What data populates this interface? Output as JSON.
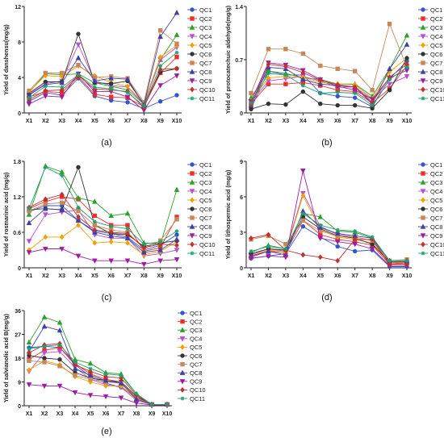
{
  "colors": [
    "#3355cc",
    "#e8312d",
    "#2ca02c",
    "#b84fd1",
    "#f0a000",
    "#333333",
    "#c8875a",
    "#4040a0",
    "#9b1fa0",
    "#c0302f",
    "#20a070"
  ],
  "markers": [
    "circle",
    "square",
    "triangle",
    "tri-down",
    "diamond",
    "circle",
    "square",
    "triangle",
    "tri-down",
    "diamond",
    "star"
  ],
  "chart_data": [
    {
      "type": "line",
      "panel": "(a)",
      "ylabel": "Yield of danshensu(mg/g)",
      "x": [
        "X1",
        "X2",
        "X3",
        "X4",
        "X5",
        "X6",
        "X7",
        "X8",
        "X9",
        "X10"
      ],
      "ylim": [
        0,
        12
      ],
      "yticks": [
        0,
        4,
        8,
        12
      ],
      "series": [
        {
          "name": "QC1",
          "values": [
            1.3,
            2.3,
            2.0,
            3.9,
            1.9,
            1.4,
            1.2,
            0.5,
            1.3,
            2.0
          ]
        },
        {
          "name": "QC2",
          "values": [
            1.8,
            2.4,
            2.3,
            4.1,
            2.1,
            1.8,
            1.7,
            0.7,
            4.5,
            6.3
          ]
        },
        {
          "name": "QC3",
          "values": [
            2.3,
            4.4,
            4.3,
            4.4,
            3.4,
            3.0,
            2.6,
            1.0,
            6.0,
            8.8
          ]
        },
        {
          "name": "QC4",
          "values": [
            2.1,
            3.3,
            3.6,
            7.7,
            3.6,
            3.1,
            2.9,
            1.0,
            6.0,
            7.4
          ]
        },
        {
          "name": "QC5",
          "values": [
            2.4,
            4.2,
            4.1,
            5.3,
            4.2,
            3.4,
            3.0,
            1.1,
            6.3,
            7.6
          ]
        },
        {
          "name": "QC6",
          "values": [
            2.2,
            3.5,
            3.5,
            8.9,
            3.4,
            3.3,
            3.6,
            1.0,
            4.6,
            5.0
          ]
        },
        {
          "name": "QC7",
          "values": [
            2.5,
            4.5,
            4.5,
            5.4,
            4.0,
            4.1,
            3.9,
            1.2,
            9.3,
            7.8
          ]
        },
        {
          "name": "QC8",
          "values": [
            2.0,
            3.2,
            3.4,
            6.2,
            3.6,
            3.9,
            3.8,
            0.9,
            8.6,
            11.3
          ]
        },
        {
          "name": "QC9",
          "values": [
            1.0,
            1.9,
            1.8,
            4.4,
            2.4,
            2.4,
            1.8,
            0.3,
            3.1,
            4.2
          ]
        },
        {
          "name": "QC10",
          "values": [
            1.5,
            2.5,
            2.6,
            4.2,
            2.7,
            2.6,
            2.4,
            0.6,
            4.9,
            5.0
          ]
        },
        {
          "name": "QC11",
          "values": [
            1.7,
            3.0,
            2.9,
            4.3,
            2.9,
            2.7,
            2.3,
            0.8,
            5.3,
            6.8
          ]
        }
      ]
    },
    {
      "type": "line",
      "panel": "(b)",
      "ylabel": "Yield of protocatechuic aldehyde(mg/g)",
      "x": [
        "X1",
        "X2",
        "X3",
        "X4",
        "X5",
        "X6",
        "X7",
        "X8",
        "X9",
        "X10"
      ],
      "ylim": [
        0,
        1.4
      ],
      "yticks": [
        0,
        0.7,
        1.4
      ],
      "series": [
        {
          "name": "QC1",
          "values": [
            0.06,
            0.55,
            0.5,
            0.5,
            0.26,
            0.22,
            0.2,
            0.08,
            0.45,
            0.68
          ]
        },
        {
          "name": "QC2",
          "values": [
            0.12,
            0.38,
            0.38,
            0.4,
            0.36,
            0.3,
            0.28,
            0.13,
            0.32,
            0.62
          ]
        },
        {
          "name": "QC3",
          "values": [
            0.2,
            0.55,
            0.52,
            0.46,
            0.44,
            0.38,
            0.38,
            0.22,
            0.58,
            1.02
          ]
        },
        {
          "name": "QC4",
          "values": [
            0.14,
            0.42,
            0.45,
            0.48,
            0.42,
            0.34,
            0.34,
            0.18,
            0.38,
            0.48
          ]
        },
        {
          "name": "QC5",
          "values": [
            0.16,
            0.46,
            0.48,
            0.47,
            0.4,
            0.38,
            0.37,
            0.19,
            0.54,
            0.72
          ]
        },
        {
          "name": "QC6",
          "values": [
            0.05,
            0.12,
            0.11,
            0.28,
            0.12,
            0.1,
            0.1,
            0.06,
            0.3,
            0.72
          ]
        },
        {
          "name": "QC7",
          "values": [
            0.26,
            0.84,
            0.84,
            0.78,
            0.62,
            0.58,
            0.55,
            0.3,
            1.17,
            0.6
          ]
        },
        {
          "name": "QC8",
          "values": [
            0.1,
            0.6,
            0.58,
            0.44,
            0.38,
            0.36,
            0.34,
            0.12,
            0.58,
            0.9
          ]
        },
        {
          "name": "QC9",
          "values": [
            0.15,
            0.66,
            0.63,
            0.56,
            0.44,
            0.35,
            0.3,
            0.18,
            0.46,
            0.56
          ]
        },
        {
          "name": "QC10",
          "values": [
            0.11,
            0.64,
            0.61,
            0.53,
            0.43,
            0.37,
            0.34,
            0.14,
            0.47,
            0.64
          ]
        },
        {
          "name": "QC11",
          "values": [
            0.13,
            0.52,
            0.5,
            0.36,
            0.26,
            0.27,
            0.26,
            0.1,
            0.44,
            0.6
          ]
        }
      ]
    },
    {
      "type": "line",
      "panel": "(c)",
      "ylabel": "Yield of rosmarinic acid (mg/g)",
      "x": [
        "X1",
        "X2",
        "X3",
        "X4",
        "X5",
        "X6",
        "X7",
        "X8",
        "X9",
        "X10"
      ],
      "ylim": [
        0,
        1.8
      ],
      "yticks": [
        0,
        0.6,
        1.2,
        1.8
      ],
      "series": [
        {
          "name": "QC1",
          "values": [
            0.95,
            1.05,
            1.05,
            0.8,
            0.62,
            0.58,
            0.52,
            0.3,
            0.38,
            0.56
          ]
        },
        {
          "name": "QC2",
          "values": [
            1.0,
            1.12,
            1.2,
            1.16,
            0.88,
            0.72,
            0.72,
            0.28,
            0.34,
            0.86
          ]
        },
        {
          "name": "QC3",
          "values": [
            0.9,
            1.72,
            1.62,
            1.18,
            1.12,
            0.88,
            0.92,
            0.42,
            0.4,
            1.32
          ]
        },
        {
          "name": "QC4",
          "values": [
            0.45,
            0.9,
            0.94,
            0.98,
            0.56,
            0.5,
            0.5,
            0.2,
            0.24,
            0.3
          ]
        },
        {
          "name": "QC5",
          "values": [
            0.3,
            0.52,
            0.52,
            0.72,
            0.42,
            0.44,
            0.42,
            0.22,
            0.28,
            0.44
          ]
        },
        {
          "name": "QC6",
          "values": [
            0.98,
            1.0,
            0.98,
            1.7,
            0.72,
            0.58,
            0.56,
            0.36,
            0.42,
            0.46
          ]
        },
        {
          "name": "QC7",
          "values": [
            0.96,
            1.08,
            1.1,
            0.96,
            0.72,
            0.64,
            0.6,
            0.32,
            0.46,
            0.82
          ]
        },
        {
          "name": "QC8",
          "values": [
            0.76,
            1.0,
            0.98,
            0.8,
            0.6,
            0.54,
            0.5,
            0.26,
            0.3,
            0.48
          ]
        },
        {
          "name": "QC9",
          "values": [
            0.26,
            0.32,
            0.32,
            0.2,
            0.12,
            0.12,
            0.12,
            0.06,
            0.12,
            0.14
          ]
        },
        {
          "name": "QC10",
          "values": [
            1.02,
            1.16,
            1.24,
            0.86,
            0.64,
            0.6,
            0.58,
            0.34,
            0.4,
            0.38
          ]
        },
        {
          "name": "QC11",
          "values": [
            1.0,
            1.7,
            1.56,
            1.02,
            0.78,
            0.7,
            0.66,
            0.4,
            0.44,
            0.62
          ]
        }
      ]
    },
    {
      "type": "line",
      "panel": "(d)",
      "ylabel": "Yield of lithospermic acid (mg/g)",
      "x": [
        "X1",
        "X2",
        "X3",
        "X4",
        "X5",
        "X6",
        "X7",
        "X8",
        "X9",
        "X10"
      ],
      "ylim": [
        0,
        9
      ],
      "yticks": [
        0,
        3,
        6,
        9
      ],
      "series": [
        {
          "name": "QC1",
          "values": [
            0.8,
            1.0,
            1.2,
            3.5,
            2.6,
            1.8,
            1.4,
            1.5,
            0.1,
            0.1
          ]
        },
        {
          "name": "QC2",
          "values": [
            0.9,
            1.4,
            1.3,
            4.0,
            2.8,
            2.4,
            2.2,
            1.9,
            0.3,
            0.4
          ]
        },
        {
          "name": "QC3",
          "values": [
            1.3,
            1.9,
            1.6,
            4.6,
            4.3,
            3.1,
            3.0,
            2.5,
            0.5,
            0.5
          ]
        },
        {
          "name": "QC4",
          "values": [
            1.1,
            1.6,
            1.4,
            6.3,
            3.5,
            2.8,
            2.6,
            2.3,
            0.4,
            0.5
          ]
        },
        {
          "name": "QC5",
          "values": [
            1.0,
            1.5,
            1.3,
            6.1,
            3.2,
            2.6,
            2.4,
            2.1,
            0.4,
            0.4
          ]
        },
        {
          "name": "QC6",
          "values": [
            1.2,
            1.6,
            1.5,
            4.3,
            3.3,
            2.7,
            2.5,
            2.0,
            0.5,
            0.5
          ]
        },
        {
          "name": "QC7",
          "values": [
            2.4,
            2.7,
            2.0,
            4.0,
            3.1,
            2.7,
            2.6,
            2.3,
            0.6,
            0.7
          ]
        },
        {
          "name": "QC8",
          "values": [
            1.0,
            1.4,
            1.1,
            4.8,
            3.4,
            2.9,
            2.7,
            2.5,
            0.6,
            0.6
          ]
        },
        {
          "name": "QC9",
          "values": [
            0.8,
            1.0,
            0.9,
            8.2,
            2.5,
            2.2,
            2.0,
            1.6,
            0.2,
            0.2
          ]
        },
        {
          "name": "QC10",
          "values": [
            2.5,
            2.8,
            1.5,
            1.1,
            0.9,
            0.6,
            2.4,
            2.4,
            0.3,
            0.3
          ]
        },
        {
          "name": "QC11",
          "values": [
            1.4,
            1.8,
            1.6,
            4.6,
            3.6,
            3.2,
            3.1,
            2.6,
            0.6,
            0.6
          ]
        }
      ]
    },
    {
      "type": "line",
      "panel": "(e)",
      "ylabel": "Yield of salvianolic acid B(mg/g)",
      "x": [
        "X1",
        "X2",
        "X3",
        "X4",
        "X5",
        "X6",
        "X7",
        "X8",
        "X9",
        "X10"
      ],
      "ylim": [
        0,
        36
      ],
      "yticks": [
        0,
        9,
        18,
        27,
        36
      ],
      "series": [
        {
          "name": "QC1",
          "values": [
            22.0,
            22.5,
            22.0,
            15.5,
            11.0,
            8.5,
            7.0,
            3.0,
            0.5,
            0.5
          ]
        },
        {
          "name": "QC2",
          "values": [
            17.5,
            21.0,
            22.0,
            16.0,
            12.0,
            10.0,
            9.0,
            3.5,
            0.5,
            0.5
          ]
        },
        {
          "name": "QC3",
          "values": [
            24.0,
            33.5,
            31.5,
            17.5,
            16.0,
            12.5,
            12.0,
            4.5,
            0.5,
            0.5
          ]
        },
        {
          "name": "QC4",
          "values": [
            13.0,
            20.0,
            20.5,
            14.5,
            10.0,
            8.0,
            7.0,
            2.0,
            0.5,
            0.5
          ]
        },
        {
          "name": "QC5",
          "values": [
            13.5,
            17.0,
            15.5,
            11.0,
            9.0,
            7.5,
            7.5,
            2.5,
            0.5,
            0.5
          ]
        },
        {
          "name": "QC6",
          "values": [
            19.0,
            18.0,
            17.5,
            12.5,
            10.5,
            9.5,
            9.0,
            3.5,
            0.5,
            0.5
          ]
        },
        {
          "name": "QC7",
          "values": [
            17.0,
            16.5,
            15.0,
            11.5,
            10.0,
            9.0,
            8.5,
            3.0,
            0.5,
            0.5
          ]
        },
        {
          "name": "QC8",
          "values": [
            20.5,
            30.0,
            28.5,
            14.0,
            11.5,
            9.5,
            8.5,
            2.5,
            0.5,
            0.5
          ]
        },
        {
          "name": "QC9",
          "values": [
            8.0,
            7.5,
            7.5,
            5.0,
            4.0,
            3.5,
            3.0,
            1.0,
            0.3,
            0.3
          ]
        },
        {
          "name": "QC10",
          "values": [
            20.0,
            23.0,
            23.5,
            15.5,
            13.0,
            11.0,
            10.5,
            4.0,
            0.5,
            0.5
          ]
        },
        {
          "name": "QC11",
          "values": [
            21.5,
            22.5,
            23.0,
            16.5,
            14.0,
            12.0,
            11.5,
            4.5,
            0.5,
            0.5
          ]
        }
      ]
    }
  ]
}
